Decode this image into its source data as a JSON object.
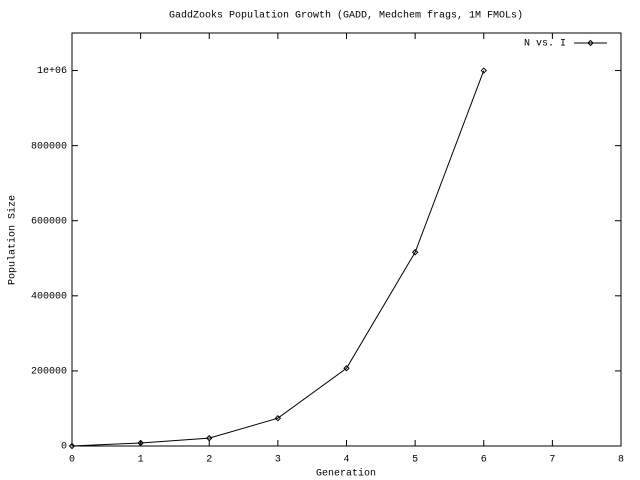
{
  "chart_data": {
    "type": "line",
    "title": "GaddZooks Population Growth (GADD, Medchem frags, 1M FMOLs)",
    "x_label": "Generation",
    "y_label": "Population Size",
    "x": [
      0,
      1,
      2,
      3,
      4,
      5,
      6
    ],
    "series": [
      {
        "name": "N vs. I",
        "color": "#000000",
        "values": [
          0,
          8000,
          21000,
          74000,
          207000,
          516000,
          1000000
        ]
      }
    ],
    "xlim": [
      0,
      8
    ],
    "xticks": [
      0,
      1,
      2,
      3,
      4,
      5,
      6,
      7,
      8
    ],
    "ylim": [
      0,
      1100000
    ],
    "yticks": [
      0,
      200000,
      400000,
      600000,
      800000,
      {
        "value": 1000000,
        "label": "1e+06"
      }
    ],
    "grid": false,
    "legend": "top-right"
  }
}
